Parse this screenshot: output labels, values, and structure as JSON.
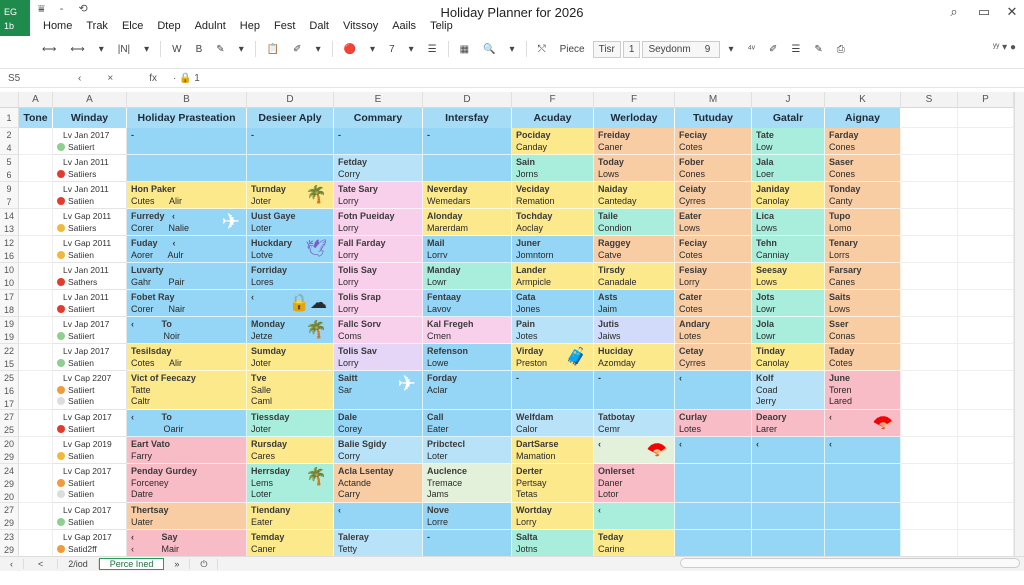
{
  "app": {
    "logo_top": "EG",
    "logo_bottom": "1b",
    "title": "Holiday Planner for 2026",
    "window_buttons": [
      "search-icon",
      "maximize-icon",
      "close-icon"
    ]
  },
  "menu": [
    "Home",
    "Trak",
    "Elce",
    "Dtep",
    "Adulnt",
    "Hep",
    "Fest",
    "Dalt",
    "Vitssoy",
    "Aails",
    "Telip"
  ],
  "toolbar": {
    "items": [
      "⟷",
      "⟷",
      "▾",
      "|N|",
      "▾",
      "W",
      "B",
      "✎",
      "▾",
      "📋",
      "✐",
      "▾",
      "🔴",
      "▾",
      "7",
      "▾",
      "☰",
      "▦",
      "🔍",
      "▾",
      "⤲"
    ],
    "piece_label": "Piece",
    "font_box": "Tisr",
    "size_box": "1",
    "style_select": "Seydonm",
    "style_num": "9",
    "tail": [
      "▾",
      "⁴ᵛ",
      "✐",
      "☰",
      "✎",
      "⎙"
    ],
    "right": "ʸʸ ▾ ●"
  },
  "formula_bar": {
    "name_box": "S5",
    "nav": "‹",
    "cancel": "×",
    "fx": "fx",
    "value": "· 🔒 1"
  },
  "columns": [
    "A",
    "A",
    "B",
    "D",
    "E",
    "D",
    "F",
    "F",
    "M",
    "J",
    "K",
    "S",
    "P"
  ],
  "headers": [
    "Tone",
    "Winday",
    "Holiday Prasteation",
    "Desieer Aply",
    "Commary",
    "Intersfay",
    "Acuday",
    "Werloday",
    "Tutuday",
    "Gatalr",
    "Aignay"
  ],
  "colors": {
    "blue": "#95d5f6",
    "lightblue": "#b8e2f8",
    "yellow": "#fbe98c",
    "pink": "#f9d0ec",
    "lavender": "#e5d5f6",
    "salmon": "#f8bcc6",
    "orange": "#f9cda4",
    "teal": "#a9eedc",
    "palegreen": "#e3f0da",
    "periwinkle": "#d3dbfa"
  },
  "rows": [
    {
      "nums": [
        "2",
        "4"
      ],
      "date": [
        "Lv Jan 2017",
        "Satiiert"
      ],
      "status": "green",
      "cells": [
        [
          [
            "-"
          ],
          "blue"
        ],
        [
          [
            "-"
          ],
          "blue"
        ],
        [
          [
            "-"
          ],
          "blue"
        ],
        [
          [
            "-"
          ],
          "blue"
        ],
        [
          [
            "Pociday",
            "Canday"
          ],
          "yellow"
        ],
        [
          [
            "Freiday",
            "Caner"
          ],
          "orange"
        ],
        [
          [
            "Feciay",
            "Cotes"
          ],
          "orange"
        ],
        [
          [
            "Tate",
            "Low"
          ],
          "teal"
        ],
        [
          [
            "Farday",
            "Cones"
          ],
          "orange"
        ]
      ]
    },
    {
      "nums": [
        "5",
        "6"
      ],
      "date": [
        "Lv Jan 2011",
        "Satiiers"
      ],
      "status": "red",
      "cells": [
        [
          [
            ""
          ],
          "blue"
        ],
        [
          [
            ""
          ],
          "blue"
        ],
        [
          [
            "Fetday",
            "Corry"
          ],
          "lightblue"
        ],
        [
          [
            ""
          ],
          "blue"
        ],
        [
          [
            "Sain",
            "Jorns"
          ],
          "teal"
        ],
        [
          [
            "Today",
            "Lows"
          ],
          "orange"
        ],
        [
          [
            "Fober",
            "Cones"
          ],
          "orange"
        ],
        [
          [
            "Jala",
            "Loer"
          ],
          "teal"
        ],
        [
          [
            "Saser",
            "Cones"
          ],
          "orange"
        ]
      ]
    },
    {
      "nums": [
        "9",
        "7"
      ],
      "date": [
        "Lv Jan 2011",
        "Satiien"
      ],
      "status": "red",
      "cells": [
        [
          [
            "Hon Paker",
            "Cutes      Alir"
          ],
          "yellow"
        ],
        [
          [
            "Turnday",
            "Joter"
          ],
          "yellow",
          "palm-tree-icon"
        ],
        [
          [
            "Tate Sary",
            "Lorry"
          ],
          "pink"
        ],
        [
          [
            "Neverday",
            "Wemedars"
          ],
          "yellow"
        ],
        [
          [
            "Veciday",
            "Remation"
          ],
          "yellow"
        ],
        [
          [
            "Naiday",
            "Canteday"
          ],
          "yellow"
        ],
        [
          [
            "Ceiaty",
            "Cyrres"
          ],
          "orange"
        ],
        [
          [
            "Janiday",
            "Canolay"
          ],
          "yellow"
        ],
        [
          [
            "Tonday",
            "Canty"
          ],
          "orange"
        ]
      ]
    },
    {
      "nums": [
        "14",
        "13"
      ],
      "date": [
        "Lv Gap 2011",
        "Satiiers"
      ],
      "status": "yellow",
      "cells": [
        [
          [
            "Furredy   ‹",
            "Corer      Nalie"
          ],
          "blue",
          "airplane-icon"
        ],
        [
          [
            "Uust Gaye",
            "Loter"
          ],
          "blue"
        ],
        [
          [
            "Fotn Pueiday",
            "Lorry"
          ],
          "pink"
        ],
        [
          [
            "Alonday",
            "Marerdam"
          ],
          "yellow"
        ],
        [
          [
            "Tochday",
            "Aoclay"
          ],
          "yellow"
        ],
        [
          [
            "Taile",
            "Condion"
          ],
          "teal"
        ],
        [
          [
            "Eater",
            "Lows"
          ],
          "orange"
        ],
        [
          [
            "Lica",
            "Lows"
          ],
          "teal"
        ],
        [
          [
            "Tupo",
            "Lomo"
          ],
          "orange"
        ]
      ]
    },
    {
      "nums": [
        "12",
        "16"
      ],
      "date": [
        "Lv Gap 2011",
        "Satiien"
      ],
      "status": "yellow",
      "cells": [
        [
          [
            "Fuday      ‹",
            "Aorer      Aulr"
          ],
          "blue"
        ],
        [
          [
            "Huckdary",
            "Lotve"
          ],
          "blue",
          "bird-icon"
        ],
        [
          [
            "Fall Farday",
            "Lorry"
          ],
          "pink"
        ],
        [
          [
            "Mail",
            "Lorrv"
          ],
          "blue"
        ],
        [
          [
            "Juner",
            "Jomntorn"
          ],
          "blue"
        ],
        [
          [
            "Raggey",
            "Catve"
          ],
          "orange"
        ],
        [
          [
            "Feciay",
            "Cotes"
          ],
          "orange"
        ],
        [
          [
            "Tehn",
            "Canniay"
          ],
          "teal"
        ],
        [
          [
            "Tenary",
            "Lorrs"
          ],
          "orange"
        ]
      ]
    },
    {
      "nums": [
        "10",
        "10"
      ],
      "date": [
        "Lv Jan 2011",
        "Sathers"
      ],
      "status": "red",
      "cells": [
        [
          [
            "Luvarty",
            "Gahr       Pair"
          ],
          "blue"
        ],
        [
          [
            "Forriday",
            "Lores"
          ],
          "blue"
        ],
        [
          [
            "Tolis Say",
            "Lorry"
          ],
          "pink"
        ],
        [
          [
            "Manday",
            "Lowr"
          ],
          "teal"
        ],
        [
          [
            "Lander",
            "Armpicle"
          ],
          "yellow"
        ],
        [
          [
            "Tirsdy",
            "Canadale"
          ],
          "yellow"
        ],
        [
          [
            "Fesiay",
            "Lorry"
          ],
          "orange"
        ],
        [
          [
            "Seesay",
            "Lows"
          ],
          "yellow"
        ],
        [
          [
            "Farsary",
            "Canes"
          ],
          "orange"
        ]
      ]
    },
    {
      "nums": [
        "17",
        "18"
      ],
      "date": [
        "Lv Jan 2011",
        "Satiiert"
      ],
      "status": "red",
      "cells": [
        [
          [
            "Fobet Ray",
            "Corer      Nair"
          ],
          "blue"
        ],
        [
          [
            "‹"
          ],
          "blue",
          "lock-cloud-icon"
        ],
        [
          [
            "Tolis Srap",
            "Lorry"
          ],
          "pink"
        ],
        [
          [
            "Fentaay",
            "Lavov"
          ],
          "blue"
        ],
        [
          [
            "Cata",
            "Jones"
          ],
          "blue"
        ],
        [
          [
            "Asts",
            "Jaim"
          ],
          "blue"
        ],
        [
          [
            "Cater",
            "Cotes"
          ],
          "orange"
        ],
        [
          [
            "Jots",
            "Lowr"
          ],
          "teal"
        ],
        [
          [
            "Saits",
            "Lows"
          ],
          "orange"
        ]
      ]
    },
    {
      "nums": [
        "19",
        "19"
      ],
      "date": [
        "Lv Jap 2017",
        "Satiiert"
      ],
      "status": "green",
      "cells": [
        [
          [
            "‹           To",
            "             Noir"
          ],
          "blue"
        ],
        [
          [
            "Monday",
            "Jetze"
          ],
          "blue",
          "palm-tree-icon"
        ],
        [
          [
            "Fallc Sorv",
            "Coms"
          ],
          "pink"
        ],
        [
          [
            "Kal Fregeh",
            "Cmen"
          ],
          "pink"
        ],
        [
          [
            "Pain",
            "Jotes"
          ],
          "lightblue"
        ],
        [
          [
            "Jutis",
            "Jaiws"
          ],
          "periwinkle"
        ],
        [
          [
            "Andary",
            "Lotes"
          ],
          "orange"
        ],
        [
          [
            "Jola",
            "Lowr"
          ],
          "teal"
        ],
        [
          [
            "Sser",
            "Conas"
          ],
          "orange"
        ]
      ]
    },
    {
      "nums": [
        "22",
        "15"
      ],
      "date": [
        "Lv Jap 2017",
        "Satiien"
      ],
      "status": "green",
      "cells": [
        [
          [
            "Tesilsday",
            "Cotes      Alir"
          ],
          "yellow"
        ],
        [
          [
            "Sumday",
            "Joter"
          ],
          "yellow"
        ],
        [
          [
            "Tolis Sav",
            "Lorry"
          ],
          "lavender"
        ],
        [
          [
            "Refenson",
            "Lowe"
          ],
          "blue"
        ],
        [
          [
            "Virday",
            "Preston"
          ],
          "yellow",
          "luggage-icon"
        ],
        [
          [
            "Huciday",
            "Azomday"
          ],
          "yellow"
        ],
        [
          [
            "Cetay",
            "Cyrres"
          ],
          "orange"
        ],
        [
          [
            "Tinday",
            "Canolay"
          ],
          "yellow"
        ],
        [
          [
            "Taday",
            "Cotes"
          ],
          "orange"
        ]
      ]
    },
    {
      "nums": [
        "25",
        "16",
        "17"
      ],
      "date": [
        "Lv Cap 2207",
        "Satiiert",
        "Satiien"
      ],
      "status": "orange",
      "cells": [
        [
          [
            "Vict of Feecazy",
            "Tatte",
            "Caltr"
          ],
          "yellow"
        ],
        [
          [
            "Tve",
            "Salle",
            "Caml"
          ],
          "yellow"
        ],
        [
          [
            "Saitt",
            "Sar"
          ],
          "blue",
          "airplane-icon"
        ],
        [
          [
            "Forday",
            "Aclar"
          ],
          "blue"
        ],
        [
          [
            "-"
          ],
          "blue"
        ],
        [
          [
            "-"
          ],
          "blue"
        ],
        [
          [
            "‹"
          ],
          "blue"
        ],
        [
          [
            "Kolf",
            "Coad",
            "Jerry"
          ],
          "lightblue"
        ],
        [
          [
            "June",
            "Toren",
            "Lared"
          ],
          "salmon"
        ]
      ]
    },
    {
      "nums": [
        "27",
        "25"
      ],
      "date": [
        "Lv Gap 2017",
        "Satiiert"
      ],
      "status": "red",
      "cells": [
        [
          [
            "‹           To",
            "             Oarir"
          ],
          "blue"
        ],
        [
          [
            "Tiessday",
            "Joter"
          ],
          "teal"
        ],
        [
          [
            "Dale",
            "Corey"
          ],
          "blue"
        ],
        [
          [
            "Call",
            "Eater"
          ],
          "blue"
        ],
        [
          [
            "Welfdam",
            "Calor"
          ],
          "lightblue"
        ],
        [
          [
            "Tatbotay",
            "Cemr"
          ],
          "lightblue"
        ],
        [
          [
            "Curlay",
            "Lotes"
          ],
          "salmon"
        ],
        [
          [
            "Deaory",
            "Larer"
          ],
          "salmon"
        ],
        [
          [
            "‹"
          ],
          "salmon",
          "fan-icon"
        ]
      ]
    },
    {
      "nums": [
        "20",
        "29"
      ],
      "date": [
        "Lv Gap 2019",
        "Satiien"
      ],
      "status": "yellow",
      "cells": [
        [
          [
            "Eart Vato",
            "Farry"
          ],
          "salmon"
        ],
        [
          [
            "Rursday",
            "Cares"
          ],
          "yellow"
        ],
        [
          [
            "Balie Sgidy",
            "Corry"
          ],
          "lightblue"
        ],
        [
          [
            "Pribctecl",
            "Loter"
          ],
          "lightblue"
        ],
        [
          [
            "DartSarse",
            "Mamation"
          ],
          "yellow"
        ],
        [
          [
            "‹"
          ],
          "palegreen",
          "fan-icon"
        ],
        [
          [
            "‹"
          ],
          "blue"
        ],
        [
          [
            "‹"
          ],
          "blue"
        ],
        [
          [
            "‹"
          ],
          "blue"
        ]
      ]
    },
    {
      "nums": [
        "24",
        "29",
        "20"
      ],
      "date": [
        "Lv Cap 2017",
        "Satiiert",
        "Satiien"
      ],
      "status": "orange",
      "cells": [
        [
          [
            "Penday Gurdey",
            "Forceney",
            "Datre"
          ],
          "salmon"
        ],
        [
          [
            "Herrsday",
            "Lems",
            "Loter"
          ],
          "teal",
          "palm-tree-icon"
        ],
        [
          [
            "Acla Lsentay",
            "Actande",
            "Carry"
          ],
          "orange"
        ],
        [
          [
            "Auclence",
            "Tremace",
            "Jams"
          ],
          "palegreen"
        ],
        [
          [
            "Derter",
            "Pertsay",
            "Tetas"
          ],
          "yellow"
        ],
        [
          [
            "Onlerset",
            "Daner",
            "Lotor"
          ],
          "salmon"
        ],
        [
          [
            ""
          ],
          "blue"
        ],
        [
          [
            ""
          ],
          "blue"
        ],
        [
          [
            ""
          ],
          "blue"
        ]
      ]
    },
    {
      "nums": [
        "27",
        "29"
      ],
      "date": [
        "Lv Cap 2017",
        "Satiien"
      ],
      "status": "green",
      "cells": [
        [
          [
            "Thertsay",
            "Uater"
          ],
          "orange"
        ],
        [
          [
            "Tiendany",
            "Eater"
          ],
          "yellow"
        ],
        [
          [
            "‹"
          ],
          "blue"
        ],
        [
          [
            "Nove",
            "Lorre"
          ],
          "blue"
        ],
        [
          [
            "Wortday",
            "Lorry"
          ],
          "yellow"
        ],
        [
          [
            "‹"
          ],
          "teal"
        ],
        [
          [
            ""
          ],
          "blue"
        ],
        [
          [
            ""
          ],
          "blue"
        ],
        [
          [
            ""
          ],
          "blue"
        ]
      ]
    },
    {
      "nums": [
        "23",
        "29"
      ],
      "date": [
        "Lv Gap 2017",
        "Satid2ff"
      ],
      "status": "orange",
      "cells": [
        [
          [
            "‹           Say",
            "‹           Mair"
          ],
          "salmon"
        ],
        [
          [
            "Temday",
            "Caner"
          ],
          "yellow"
        ],
        [
          [
            "Taleray",
            "Tetty"
          ],
          "lightblue"
        ],
        [
          [
            "-"
          ],
          "blue"
        ],
        [
          [
            "Salta",
            "Jotns"
          ],
          "teal"
        ],
        [
          [
            "Teday",
            "Carine"
          ],
          "yellow"
        ],
        [
          [
            ""
          ],
          "blue"
        ],
        [
          [
            ""
          ],
          "blue"
        ],
        [
          [
            ""
          ],
          "blue"
        ]
      ]
    }
  ],
  "sheet_tabs": {
    "first": "‹",
    "prev": "<",
    "tab1": "2/iod",
    "tab2": "Perce Ined",
    "next": "»",
    "add": "⏻"
  }
}
